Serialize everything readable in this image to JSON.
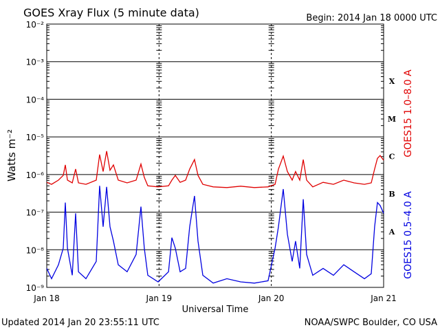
{
  "chart_data": {
    "type": "line",
    "title": "GOES Xray Flux (5 minute data)",
    "subtitle": "Begin:  2014 Jan 18 0000 UTC",
    "y_label": "Watts m⁻²",
    "x_label": "Universal Time",
    "footer_left": "Updated 2014 Jan 20 23:55:11 UTC",
    "footer_right": "NOAA/SWPC Boulder, CO USA",
    "log_y": true,
    "grid": true,
    "xlim": [
      0,
      3
    ],
    "xticks": [
      {
        "value": 0,
        "label": "Jan 18"
      },
      {
        "value": 1,
        "label": "Jan 19"
      },
      {
        "value": 2,
        "label": "Jan 20"
      },
      {
        "value": 3,
        "label": "Jan 21"
      }
    ],
    "ylim": [
      1e-09,
      0.01
    ],
    "yticks": [
      {
        "value": 1e-09,
        "label": "10⁻⁹"
      },
      {
        "value": 1e-08,
        "label": "10⁻⁸"
      },
      {
        "value": 1e-07,
        "label": "10⁻⁷"
      },
      {
        "value": 1e-06,
        "label": "10⁻⁶"
      },
      {
        "value": 1e-05,
        "label": "10⁻⁵"
      },
      {
        "value": 0.0001,
        "label": "10⁻⁴"
      },
      {
        "value": 0.001,
        "label": "10⁻³"
      },
      {
        "value": 0.01,
        "label": "10⁻²"
      }
    ],
    "class_labels": [
      "A",
      "B",
      "C",
      "M",
      "X"
    ],
    "x": [
      0,
      0.043,
      0.104,
      0.147,
      0.165,
      0.184,
      0.227,
      0.257,
      0.282,
      0.349,
      0.441,
      0.471,
      0.502,
      0.533,
      0.563,
      0.594,
      0.637,
      0.716,
      0.796,
      0.839,
      0.869,
      0.9,
      0.992,
      1.084,
      1.114,
      1.145,
      1.188,
      1.237,
      1.273,
      1.316,
      1.347,
      1.39,
      1.482,
      1.604,
      1.727,
      1.849,
      1.971,
      2.033,
      2.063,
      2.106,
      2.143,
      2.186,
      2.216,
      2.253,
      2.284,
      2.314,
      2.369,
      2.461,
      2.553,
      2.645,
      2.737,
      2.829,
      2.89,
      2.92,
      2.945,
      2.969,
      3.0
    ],
    "series": [
      {
        "name": "GOES15 1.0–8.0 A",
        "color": "#e00000",
        "values": [
          6.2e-07,
          5.5e-07,
          7.1e-07,
          9.5e-07,
          1.8e-06,
          7.1e-07,
          6e-07,
          1.4e-06,
          6e-07,
          5.5e-07,
          7.1e-07,
          3.4e-06,
          1.2e-06,
          4.2e-06,
          1.3e-06,
          1.8e-06,
          7.1e-07,
          6e-07,
          7.1e-07,
          1.9e-06,
          8.4e-07,
          5e-07,
          4.7e-07,
          5e-07,
          7.1e-07,
          9.5e-07,
          6.2e-07,
          7.1e-07,
          1.4e-06,
          2.5e-06,
          9.5e-07,
          5.5e-07,
          4.7e-07,
          4.5e-07,
          4.9e-07,
          4.5e-07,
          4.7e-07,
          5.5e-07,
          1.4e-06,
          3.1e-06,
          1.2e-06,
          7.1e-07,
          1.2e-06,
          7.1e-07,
          2.5e-06,
          7.1e-07,
          4.7e-07,
          6.2e-07,
          5.5e-07,
          7.1e-07,
          6e-07,
          5.5e-07,
          6e-07,
          1.4e-06,
          2.7e-06,
          3.2e-06,
          2.4e-06
        ]
      },
      {
        "name": "GOES15 0.5–4.0 A",
        "color": "#0000e0",
        "values": [
          3.2e-09,
          1.7e-09,
          4e-09,
          1.1e-08,
          1.8e-07,
          1.1e-08,
          2.1e-09,
          9.3e-08,
          2.6e-09,
          1.7e-09,
          4.9e-09,
          5e-07,
          4.1e-08,
          4.7e-07,
          4.1e-08,
          1.7e-08,
          4e-09,
          2.6e-09,
          7.5e-09,
          1.4e-07,
          1.1e-08,
          2.1e-09,
          1.4e-09,
          2.6e-09,
          2.1e-08,
          1.1e-08,
          2.6e-09,
          3.2e-09,
          4.1e-08,
          2.7e-07,
          1.7e-08,
          2.1e-09,
          1.3e-09,
          1.7e-09,
          1.4e-09,
          1.3e-09,
          1.5e-09,
          1.1e-08,
          4.1e-08,
          4.1e-07,
          2.6e-08,
          4.9e-09,
          1.7e-08,
          3.2e-09,
          2.2e-07,
          7.5e-09,
          2.1e-09,
          3.2e-09,
          2.1e-09,
          4e-09,
          2.6e-09,
          1.7e-09,
          2.3e-09,
          4.1e-08,
          1.8e-07,
          1.5e-07,
          9.3e-08
        ]
      }
    ]
  }
}
